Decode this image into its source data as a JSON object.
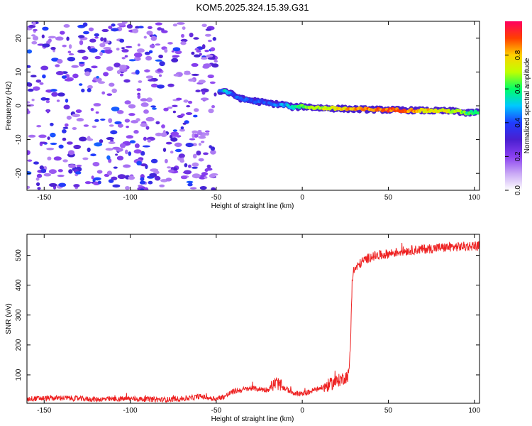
{
  "title": "KOM5.2025.324.15.39.G31",
  "chart_data": [
    {
      "type": "heatmap",
      "name": "spectrogram",
      "xlabel": "Height of straight line (km)",
      "ylabel": "Frequency (Hz)",
      "xlim": [
        -160,
        103
      ],
      "ylim": [
        -25,
        25
      ],
      "xticks": [
        -150,
        -100,
        -50,
        0,
        50,
        100
      ],
      "yticks": [
        -20,
        -10,
        0,
        10,
        20
      ],
      "colorbar": {
        "label": "Normalized spectral amplitude",
        "range": [
          0.0,
          1.0
        ],
        "ticks": [
          0.0,
          0.2,
          0.4,
          0.6,
          0.8
        ],
        "colormap": [
          "#ffffff",
          "#c9a8f5",
          "#8a3ff0",
          "#4a1fd0",
          "#1f3dff",
          "#00c8ff",
          "#00ff66",
          "#c0ff00",
          "#ffd000",
          "#ff4000",
          "#ff0060"
        ]
      },
      "signal_track": [
        {
          "x": -48,
          "freq": 4.2,
          "amp": 0.45
        },
        {
          "x": -45,
          "freq": 4.4,
          "amp": 0.52
        },
        {
          "x": -40,
          "freq": 3.2,
          "amp": 0.38
        },
        {
          "x": -35,
          "freq": 2.0,
          "amp": 0.42
        },
        {
          "x": -30,
          "freq": 1.6,
          "amp": 0.4
        },
        {
          "x": -25,
          "freq": 1.2,
          "amp": 0.45
        },
        {
          "x": -20,
          "freq": 0.8,
          "amp": 0.4
        },
        {
          "x": -15,
          "freq": 0.5,
          "amp": 0.44
        },
        {
          "x": -10,
          "freq": 0.3,
          "amp": 0.48
        },
        {
          "x": -5,
          "freq": -0.5,
          "amp": 0.52
        },
        {
          "x": 0,
          "freq": -0.2,
          "amp": 0.62
        },
        {
          "x": 10,
          "freq": -0.6,
          "amp": 0.7
        },
        {
          "x": 20,
          "freq": -0.8,
          "amp": 0.78
        },
        {
          "x": 30,
          "freq": -1.0,
          "amp": 0.82
        },
        {
          "x": 40,
          "freq": -1.1,
          "amp": 0.86
        },
        {
          "x": 50,
          "freq": -1.2,
          "amp": 0.88
        },
        {
          "x": 60,
          "freq": -1.3,
          "amp": 0.86
        },
        {
          "x": 70,
          "freq": -1.4,
          "amp": 0.8
        },
        {
          "x": 80,
          "freq": -1.5,
          "amp": 0.74
        },
        {
          "x": 90,
          "freq": -1.6,
          "amp": 0.7
        },
        {
          "x": 95,
          "freq": -2.2,
          "amp": 0.62
        },
        {
          "x": 103,
          "freq": -1.8,
          "amp": 0.55
        }
      ],
      "noise_region": {
        "x_from": -160,
        "x_to": -50,
        "amp_range": [
          0.0,
          0.3
        ]
      }
    },
    {
      "type": "line",
      "name": "snr",
      "xlabel": "Height of straight line (km)",
      "ylabel": "SNR (v/v)",
      "xlim": [
        -160,
        103
      ],
      "ylim": [
        5,
        570
      ],
      "xticks": [
        -150,
        -100,
        -50,
        0,
        50,
        100
      ],
      "yticks": [
        100,
        200,
        300,
        400,
        500
      ],
      "line_color": "#ee2222",
      "x": [
        -160,
        -140,
        -120,
        -100,
        -80,
        -65,
        -60,
        -50,
        -45,
        -40,
        -30,
        -20,
        -15,
        -12,
        -5,
        0,
        5,
        10,
        15,
        20,
        25,
        27,
        28,
        29,
        30,
        35,
        40,
        50,
        60,
        70,
        80,
        90,
        100,
        103
      ],
      "values": [
        20,
        23,
        18,
        20,
        17,
        22,
        28,
        20,
        28,
        45,
        55,
        50,
        75,
        60,
        40,
        35,
        45,
        55,
        65,
        78,
        92,
        100,
        200,
        420,
        450,
        480,
        495,
        505,
        515,
        520,
        525,
        528,
        532,
        530
      ]
    }
  ]
}
